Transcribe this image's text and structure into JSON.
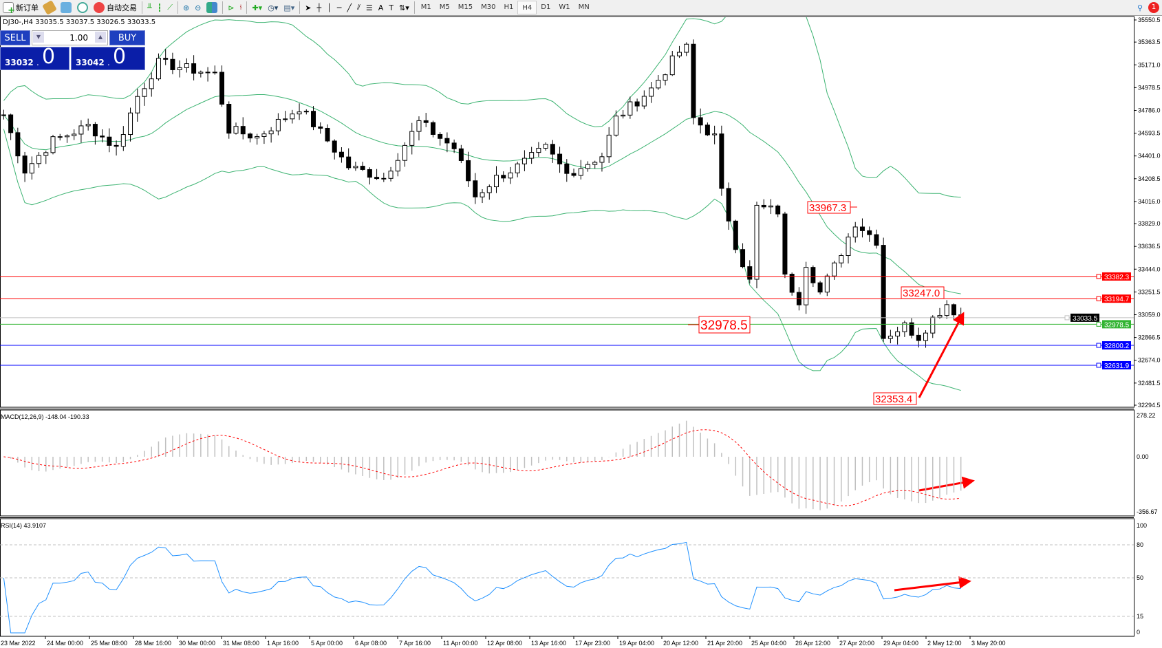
{
  "toolbar": {
    "new_order": "新订单",
    "auto_trading": "自动交易",
    "timeframes": [
      "M1",
      "M5",
      "M15",
      "M30",
      "H1",
      "H4",
      "D1",
      "W1",
      "MN"
    ],
    "active_timeframe": "H4",
    "notification_count": "1"
  },
  "chart": {
    "header": "DJ30-,H4  33035.5 33037.5 33026.5 33033.5",
    "colors": {
      "bands": "#3cb371",
      "bullish": "#ffffff",
      "bearish": "#000000",
      "macd_signal": "#ff0000",
      "macd_hist": "#c0c0c0",
      "rsi": "#1e90ff"
    }
  },
  "trade_panel": {
    "sell_label": "SELL",
    "buy_label": "BUY",
    "lot": "1.00",
    "sell_price_small": "33032",
    "sell_price_big": "0",
    "buy_price_small": "33042",
    "buy_price_big": "0"
  },
  "price_axis": [
    "35550.5",
    "35363.5",
    "35171.0",
    "34978.5",
    "34786.0",
    "34593.5",
    "34401.0",
    "34208.5",
    "34016.0",
    "33829.0",
    "33636.5",
    "33444.0",
    "33251.5",
    "33059.0",
    "32866.5",
    "32674.0",
    "32481.5",
    "32294.5"
  ],
  "levels": [
    {
      "price": 33382.3,
      "label": "33382.3",
      "color": "#ff0000"
    },
    {
      "price": 33194.7,
      "label": "33194.7",
      "color": "#ff0000"
    },
    {
      "price": 33033.5,
      "label": "33033.5",
      "color": "#000000"
    },
    {
      "price": 32978.5,
      "label": "32978.5",
      "color": "#32b432"
    },
    {
      "price": 32800.2,
      "label": "32800.2",
      "color": "#0000ff"
    },
    {
      "price": 32631.9,
      "label": "32631.9",
      "color": "#0000ff"
    }
  ],
  "annotations": [
    "33967.3",
    "33247.0",
    "32978.5",
    "32353.4"
  ],
  "macd": {
    "label": "MACD(12,26,9) -148.04 -190.33",
    "axis": [
      "278.22",
      "0.00",
      "-356.67"
    ]
  },
  "rsi": {
    "label": "RSI(14) 43.9107",
    "axis": [
      "100",
      "80",
      "50",
      "15",
      "0"
    ]
  },
  "time_axis": [
    "23 Mar 2022",
    "24 Mar 00:00",
    "25 Mar 08:00",
    "28 Mar 16:00",
    "30 Mar 00:00",
    "31 Mar 08:00",
    "1 Apr 16:00",
    "5 Apr 00:00",
    "6 Apr 08:00",
    "7 Apr 16:00",
    "11 Apr 00:00",
    "12 Apr 08:00",
    "13 Apr 16:00",
    "17 Apr 23:00",
    "19 Apr 04:00",
    "20 Apr 12:00",
    "21 Apr 20:00",
    "25 Apr 04:00",
    "26 Apr 12:00",
    "27 Apr 20:00",
    "29 Apr 04:00",
    "2 May 12:00",
    "3 May 20:00"
  ],
  "chart_data": {
    "type": "candlestick",
    "symbol": "DJ30-",
    "timeframe": "H4",
    "ylim": [
      32294.5,
      35550.5
    ],
    "close_keypoints": [
      [
        0,
        34749
      ],
      [
        3,
        34279
      ],
      [
        7,
        34530
      ],
      [
        12,
        34655
      ],
      [
        16,
        34467
      ],
      [
        19,
        34905
      ],
      [
        22,
        35187
      ],
      [
        30,
        35093
      ],
      [
        32,
        34623
      ],
      [
        36,
        34561
      ],
      [
        42,
        34811
      ],
      [
        46,
        34530
      ],
      [
        49,
        34310
      ],
      [
        54,
        34216
      ],
      [
        59,
        34686
      ],
      [
        64,
        34467
      ],
      [
        67,
        34060
      ],
      [
        70,
        34216
      ],
      [
        73,
        34310
      ],
      [
        77,
        34467
      ],
      [
        80,
        34248
      ],
      [
        85,
        34404
      ],
      [
        87,
        34717
      ],
      [
        92,
        34968
      ],
      [
        96,
        35281
      ],
      [
        97,
        35312
      ],
      [
        98,
        34717
      ],
      [
        101,
        34561
      ],
      [
        102,
        34091
      ],
      [
        104,
        33653
      ],
      [
        106,
        33340
      ],
      [
        107,
        33966
      ],
      [
        110,
        33935
      ],
      [
        111,
        33372
      ],
      [
        113,
        33184
      ],
      [
        114,
        33497
      ],
      [
        116,
        33247
      ],
      [
        118,
        33466
      ],
      [
        121,
        33841
      ],
      [
        124,
        33685
      ],
      [
        125,
        32871
      ],
      [
        128,
        32965
      ],
      [
        130,
        32871
      ],
      [
        132,
        33027
      ],
      [
        134,
        33153
      ],
      [
        136,
        33033
      ]
    ]
  }
}
